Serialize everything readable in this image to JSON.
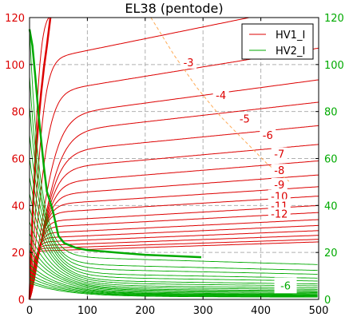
{
  "chart_data": {
    "type": "line",
    "title": "EL38 (pentode)",
    "xlim": [
      0,
      500
    ],
    "ylim": [
      0,
      120
    ],
    "xticks": [
      0,
      100,
      200,
      300,
      400,
      500
    ],
    "yticks": [
      0,
      20,
      40,
      60,
      80,
      100,
      120
    ],
    "right_axis_color": "#00aa00",
    "grid": true,
    "legend": {
      "placement": "top-right",
      "entries": [
        {
          "name": "HV1_I",
          "color": "#dd0000"
        },
        {
          "name": "HV2_I",
          "color": "#00aa00"
        }
      ]
    },
    "red_plateau_levels": [
      120,
      101,
      87,
      77,
      70,
      62,
      55,
      49,
      44,
      40,
      36.5,
      33,
      30.5,
      28,
      26,
      24.3,
      22.8,
      21.6,
      20.5
    ],
    "red_slope_per_100v": [
      6,
      5,
      4,
      3.3,
      2.8,
      2.4,
      2.2,
      2.0,
      1.8,
      1.6,
      1.5,
      1.4,
      1.3,
      1.2,
      1.1,
      1.0,
      0.9,
      0.8,
      0.8
    ],
    "red_knee_voltage": [
      20,
      30,
      40,
      55,
      60,
      55,
      50,
      45,
      40,
      35,
      30,
      27,
      24,
      21,
      18,
      16,
      14,
      12,
      10
    ],
    "red_bold_curve": {
      "x": [
        0,
        5,
        10,
        15,
        20,
        25,
        30,
        36
      ],
      "y": [
        0,
        35,
        58,
        75,
        88,
        99,
        108,
        120
      ]
    },
    "green_bold_curve": {
      "x": [
        0,
        5,
        10,
        15,
        20,
        25,
        30,
        40,
        50,
        60,
        80,
        100,
        150,
        200,
        250,
        297
      ],
      "y": [
        115,
        108,
        95,
        80,
        68,
        56,
        46,
        38,
        27,
        24,
        22,
        21,
        20,
        19,
        18.5,
        18
      ]
    },
    "green_curve_starts": [
      115,
      95,
      82,
      70,
      60,
      52,
      45,
      39,
      33,
      28,
      24,
      21,
      18,
      15,
      13,
      11,
      9.5,
      8,
      7
    ],
    "green_curve_tails": [
      18,
      15,
      13,
      11,
      9.5,
      8,
      7,
      6,
      5.2,
      4.5,
      4,
      3.5,
      3,
      2.6,
      2.3,
      2,
      1.7,
      1.5,
      1.2
    ],
    "red_curve_labels": [
      {
        "text": "-3",
        "x": 275,
        "y": 101
      },
      {
        "text": "-4",
        "x": 331,
        "y": 87
      },
      {
        "text": "-5",
        "x": 372,
        "y": 77
      },
      {
        "text": "-6",
        "x": 412,
        "y": 70
      },
      {
        "text": "-7",
        "x": 432,
        "y": 62
      },
      {
        "text": "-8",
        "x": 432,
        "y": 55
      },
      {
        "text": "-9",
        "x": 432,
        "y": 49
      },
      {
        "text": "-10",
        "x": 432,
        "y": 44
      },
      {
        "text": "-11",
        "x": 432,
        "y": 40
      },
      {
        "text": "-12",
        "x": 432,
        "y": 36.5
      }
    ],
    "green_curve_label": {
      "text": "-6",
      "x": 440,
      "y": 6
    },
    "threshold_curve": {
      "type": "dashed",
      "color": "#ffaa55",
      "x": [
        210,
        230,
        250,
        270,
        290,
        310,
        330,
        350,
        370,
        390,
        410,
        430,
        450
      ],
      "y": [
        120,
        112,
        104,
        97,
        90,
        84,
        78,
        73,
        68,
        63,
        58,
        54,
        50
      ]
    }
  }
}
